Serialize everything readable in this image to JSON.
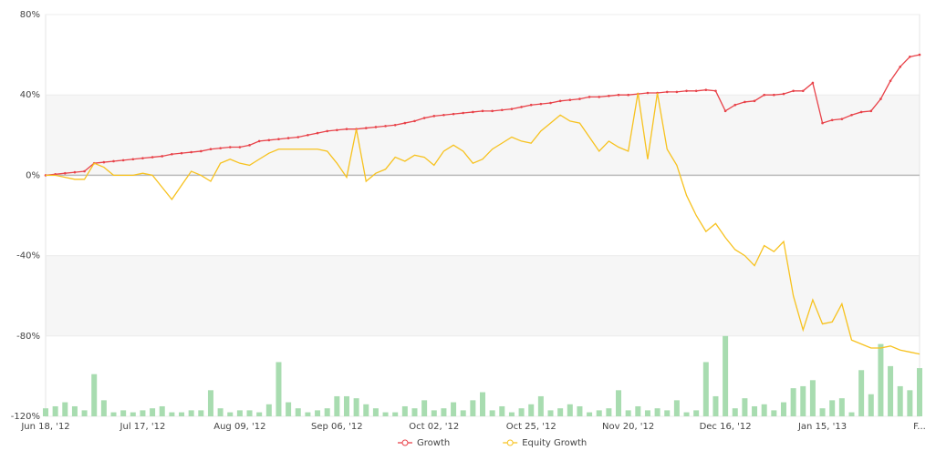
{
  "chart_data": {
    "type": "line",
    "categories": [
      "Jun 18, '12",
      null,
      null,
      null,
      null,
      null,
      null,
      null,
      null,
      null,
      "Jul 17, '12",
      null,
      null,
      null,
      null,
      null,
      null,
      null,
      null,
      null,
      "Aug 09, '12",
      null,
      null,
      null,
      null,
      null,
      null,
      null,
      null,
      null,
      "Sep 06, '12",
      null,
      null,
      null,
      null,
      null,
      null,
      null,
      null,
      null,
      "Oct 02, '12",
      null,
      null,
      null,
      null,
      null,
      null,
      null,
      null,
      null,
      "Oct 25, '12",
      null,
      null,
      null,
      null,
      null,
      null,
      null,
      null,
      null,
      "Nov 20, '12",
      null,
      null,
      null,
      null,
      null,
      null,
      null,
      null,
      null,
      "Dec 16, '12",
      null,
      null,
      null,
      null,
      null,
      null,
      null,
      null,
      null,
      "Jan 15, '13",
      null,
      null,
      null,
      null,
      null,
      null,
      null,
      null,
      null,
      "F..."
    ],
    "series": [
      {
        "name": "Growth",
        "color": "#e8434a",
        "values": [
          0,
          0.5,
          1,
          1.5,
          2,
          6,
          6.5,
          7,
          7.5,
          8,
          8.5,
          9,
          9.5,
          10.5,
          11,
          11.5,
          12,
          13,
          13.5,
          14,
          14,
          15,
          17,
          17.5,
          18,
          18.5,
          19,
          20,
          21,
          22,
          22.5,
          23,
          23,
          23.5,
          24,
          24.5,
          25,
          26,
          27,
          28.5,
          29.5,
          30,
          30.5,
          31,
          31.5,
          32,
          32,
          32.5,
          33,
          34,
          35,
          35.5,
          36,
          37,
          37.5,
          38,
          39,
          39,
          39.5,
          40,
          40,
          40.5,
          41,
          41,
          41.5,
          41.5,
          42,
          42,
          42.5,
          42,
          32,
          35,
          36.5,
          37,
          40,
          40,
          40.5,
          42,
          42,
          46,
          26,
          27.5,
          28,
          30,
          31.5,
          32,
          38,
          47,
          54,
          59,
          60
        ]
      },
      {
        "name": "Equity Growth",
        "color": "#f7c21f",
        "values": [
          0,
          0,
          -1,
          -2,
          -2,
          6,
          4,
          0,
          0,
          0,
          1,
          0,
          -6,
          -12,
          -5,
          2,
          0,
          -3,
          6,
          8,
          6,
          5,
          8,
          11,
          13,
          13,
          13,
          13,
          13,
          12,
          6,
          -1,
          23,
          -3,
          1,
          3,
          9,
          7,
          10,
          9,
          5,
          12,
          15,
          12,
          6,
          8,
          13,
          16,
          19,
          17,
          16,
          22,
          26,
          30,
          27,
          26,
          19,
          12,
          17,
          14,
          12,
          41,
          8,
          41,
          13,
          5,
          -10,
          -20,
          -28,
          -24,
          -31,
          -37,
          -40,
          -45,
          -35,
          -38,
          -33,
          -60,
          -77,
          -62,
          -74,
          -73,
          -64,
          -82,
          -84,
          -86,
          -86,
          -85,
          -87,
          -88,
          -89
        ]
      }
    ],
    "bars": {
      "color": "#a8dcb0",
      "values": [
        -116,
        -115,
        -113,
        -115,
        -117,
        -99,
        -112,
        -118,
        -117,
        -118,
        -117,
        -116,
        -115,
        -118,
        -118,
        -117,
        -117,
        -107,
        -116,
        -118,
        -117,
        -117,
        -118,
        -114,
        -93,
        -113,
        -116,
        -118,
        -117,
        -116,
        -110,
        -110,
        -111,
        -114,
        -116,
        -118,
        -118,
        -115,
        -116,
        -112,
        -117,
        -116,
        -113,
        -117,
        -112,
        -108,
        -117,
        -115,
        -118,
        -116,
        -114,
        -110,
        -117,
        -116,
        -114,
        -115,
        -118,
        -117,
        -116,
        -107,
        -117,
        -115,
        -117,
        -116,
        -117,
        -112,
        -118,
        -117,
        -93,
        -110,
        -80,
        -116,
        -111,
        -115,
        -114,
        -117,
        -113,
        -106,
        -105,
        -102,
        -116,
        -112,
        -111,
        -118,
        -97,
        -109,
        -84,
        -95,
        -105,
        -107,
        -96
      ]
    },
    "ylim": [
      -120,
      80
    ],
    "yticks": [
      {
        "value": -120,
        "label": "-120%"
      },
      {
        "value": -80,
        "label": "-80%"
      },
      {
        "value": -40,
        "label": "-40%"
      },
      {
        "value": 0,
        "label": "0%"
      },
      {
        "value": 40,
        "label": "40%"
      },
      {
        "value": 80,
        "label": "80%"
      }
    ],
    "grid": true,
    "bands": true,
    "legend": "bottom"
  }
}
